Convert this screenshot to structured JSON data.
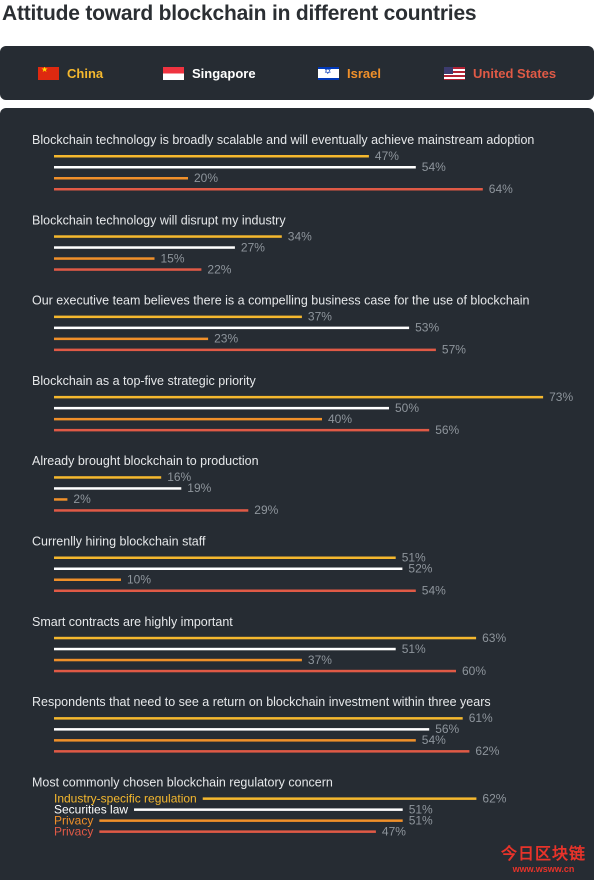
{
  "title": "Attitude toward blockchain in different countries",
  "legend": [
    {
      "name": "China",
      "color": "#f5b82e",
      "flag": "china-flag-icon"
    },
    {
      "name": "Singapore",
      "color": "#ffffff",
      "flag": "singapore-flag-icon"
    },
    {
      "name": "Israel",
      "color": "#f0902a",
      "flag": "israel-flag-icon"
    },
    {
      "name": "United States",
      "color": "#e05a46",
      "flag": "us-flag-icon"
    }
  ],
  "colors": {
    "china": "#f5b82e",
    "singapore": "#ffffff",
    "israel": "#f0902a",
    "united_states": "#e05a46",
    "label_text": "#8e959c",
    "question_text": "#e6e8ea",
    "background": "#262c33"
  },
  "chart_data": {
    "type": "bar",
    "orientation": "horizontal",
    "unit": "%",
    "xlim": [
      0,
      100
    ],
    "grid": false,
    "legend_position": "top",
    "series_order": [
      "China",
      "Singapore",
      "Israel",
      "United States"
    ],
    "groups": [
      {
        "question": "Blockchain technology is broadly scalable and will eventually achieve mainstream adoption",
        "values": [
          47,
          54,
          20,
          64
        ],
        "labels": [
          "47%",
          "54%",
          "20%",
          "64%"
        ]
      },
      {
        "question": "Blockchain technology will disrupt my industry",
        "values": [
          34,
          27,
          15,
          22
        ],
        "labels": [
          "34%",
          "27%",
          "15%",
          "22%"
        ]
      },
      {
        "question": "Our executive team believes there is a compelling business case for the use of blockchain",
        "values": [
          37,
          53,
          23,
          57
        ],
        "labels": [
          "37%",
          "53%",
          "23%",
          "57%"
        ]
      },
      {
        "question": "Blockchain as a top-five strategic priority",
        "values": [
          73,
          50,
          40,
          56
        ],
        "labels": [
          "73%",
          "50%",
          "40%",
          "56%"
        ]
      },
      {
        "question": "Already brought blockchain to production",
        "values": [
          16,
          19,
          2,
          29
        ],
        "labels": [
          "16%",
          "19%",
          "2%",
          "29%"
        ]
      },
      {
        "question": "Currenlly hiring blockchain staff",
        "values": [
          51,
          52,
          10,
          54
        ],
        "labels": [
          "51%",
          "52%",
          "10%",
          "54%"
        ]
      },
      {
        "question": "Smart contracts are highly important",
        "values": [
          63,
          51,
          37,
          60
        ],
        "labels": [
          "63%",
          "51%",
          "37%",
          "60%"
        ]
      },
      {
        "question": "Respondents that need to see a return on blockchain investment within three years",
        "values": [
          61,
          56,
          54,
          62
        ],
        "labels": [
          "61%",
          "56%",
          "54%",
          "62%"
        ]
      },
      {
        "question": "Most commonly chosen blockchain regulatory concern",
        "values": [
          62,
          51,
          51,
          47
        ],
        "labels": [
          "62%",
          "51%",
          "51%",
          "47%"
        ],
        "bar_names": [
          "Industry-specific regulation",
          "Securities law",
          "Privacy",
          "Privacy"
        ]
      }
    ]
  },
  "watermark": {
    "main": "今日区块链",
    "sub": "www.wsww.cn"
  }
}
